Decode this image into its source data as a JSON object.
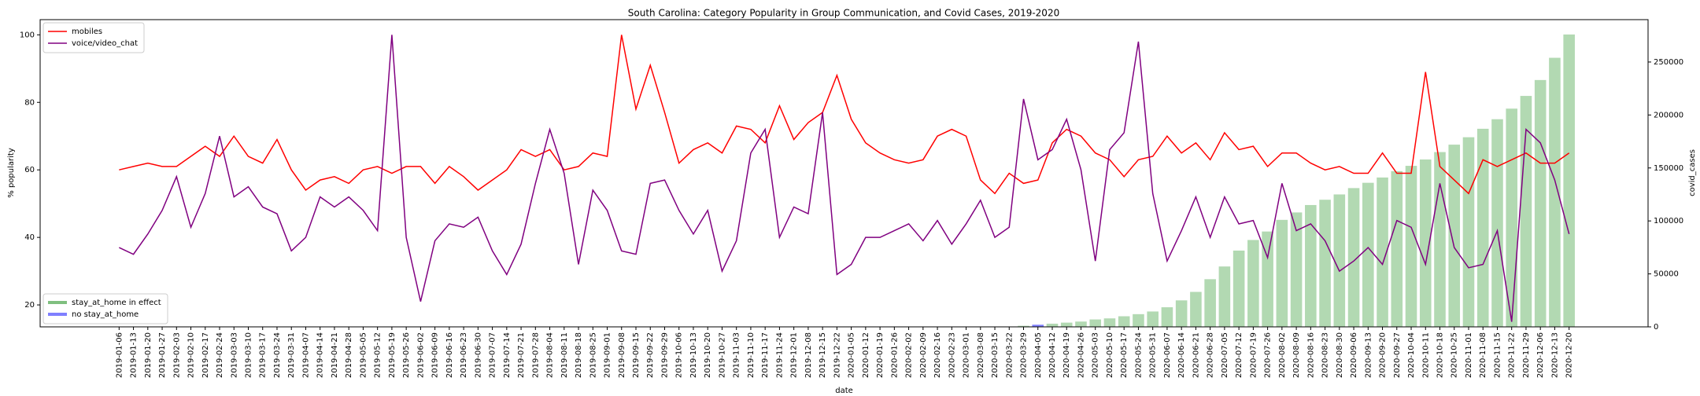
{
  "chart_data": {
    "type": "line",
    "title": "South Carolina: Category Popularity in Group Communication, and Covid Cases, 2019-2020",
    "xlabel": "date",
    "ylabel": "% popularity",
    "y2label": "covid_cases",
    "categories": [
      "2019-01-06",
      "2019-01-13",
      "2019-01-20",
      "2019-01-27",
      "2019-02-03",
      "2019-02-10",
      "2019-02-17",
      "2019-02-24",
      "2019-03-03",
      "2019-03-10",
      "2019-03-17",
      "2019-03-24",
      "2019-03-31",
      "2019-04-07",
      "2019-04-14",
      "2019-04-21",
      "2019-04-28",
      "2019-05-05",
      "2019-05-12",
      "2019-05-19",
      "2019-05-26",
      "2019-06-02",
      "2019-06-09",
      "2019-06-16",
      "2019-06-23",
      "2019-06-30",
      "2019-07-07",
      "2019-07-14",
      "2019-07-21",
      "2019-07-28",
      "2019-08-04",
      "2019-08-11",
      "2019-08-18",
      "2019-08-25",
      "2019-09-01",
      "2019-09-08",
      "2019-09-15",
      "2019-09-22",
      "2019-09-29",
      "2019-10-06",
      "2019-10-13",
      "2019-10-20",
      "2019-10-27",
      "2019-11-03",
      "2019-11-10",
      "2019-11-17",
      "2019-11-24",
      "2019-12-01",
      "2019-12-08",
      "2019-12-15",
      "2019-12-22",
      "2020-01-05",
      "2020-01-12",
      "2020-01-19",
      "2020-01-26",
      "2020-02-02",
      "2020-02-09",
      "2020-02-16",
      "2020-02-23",
      "2020-03-01",
      "2020-03-08",
      "2020-03-15",
      "2020-03-22",
      "2020-03-29",
      "2020-04-05",
      "2020-04-12",
      "2020-04-19",
      "2020-04-26",
      "2020-05-03",
      "2020-05-10",
      "2020-05-17",
      "2020-05-24",
      "2020-05-31",
      "2020-06-07",
      "2020-06-14",
      "2020-06-21",
      "2020-06-28",
      "2020-07-05",
      "2020-07-12",
      "2020-07-19",
      "2020-07-26",
      "2020-08-02",
      "2020-08-09",
      "2020-08-16",
      "2020-08-23",
      "2020-08-30",
      "2020-09-06",
      "2020-09-13",
      "2020-09-20",
      "2020-09-27",
      "2020-10-04",
      "2020-10-11",
      "2020-10-18",
      "2020-10-25",
      "2020-11-01",
      "2020-11-08",
      "2020-11-15",
      "2020-11-22",
      "2020-11-29",
      "2020-12-06",
      "2020-12-13",
      "2020-12-20"
    ],
    "series": [
      {
        "name": "mobiles",
        "kind": "line",
        "color": "#ff0000",
        "values": [
          60,
          61,
          62,
          61,
          61,
          64,
          67,
          64,
          70,
          64,
          62,
          69,
          60,
          54,
          57,
          58,
          56,
          60,
          61,
          59,
          61,
          61,
          56,
          61,
          58,
          54,
          57,
          60,
          66,
          64,
          66,
          60,
          61,
          65,
          64,
          100,
          78,
          91,
          77,
          62,
          66,
          68,
          65,
          73,
          72,
          68,
          79,
          69,
          74,
          77,
          88,
          75,
          68,
          65,
          63,
          62,
          63,
          70,
          72,
          70,
          57,
          53,
          59,
          56,
          57,
          68,
          72,
          70,
          65,
          63,
          58,
          63,
          64,
          70,
          65,
          68,
          63,
          71,
          66,
          67,
          61,
          65,
          65,
          62,
          60,
          61,
          59,
          59,
          65,
          59,
          59,
          89,
          61,
          57,
          53,
          63,
          61,
          63,
          65,
          62,
          62,
          65
        ]
      },
      {
        "name": "voice/video_chat",
        "kind": "line",
        "color": "#800080",
        "values": [
          37,
          35,
          41,
          48,
          58,
          43,
          53,
          70,
          52,
          55,
          49,
          47,
          36,
          40,
          52,
          49,
          52,
          48,
          42,
          100,
          40,
          21,
          39,
          44,
          43,
          46,
          36,
          29,
          38,
          56,
          72,
          59,
          32,
          54,
          48,
          36,
          35,
          56,
          57,
          48,
          41,
          48,
          30,
          39,
          65,
          72,
          40,
          49,
          47,
          77,
          29,
          32,
          40,
          40,
          42,
          44,
          39,
          45,
          38,
          44,
          51,
          40,
          43,
          81,
          63,
          66,
          75,
          60,
          33,
          66,
          71,
          98,
          53,
          33,
          42,
          52,
          40,
          52,
          44,
          45,
          34,
          56,
          42,
          44,
          39,
          30,
          33,
          37,
          32,
          45,
          43,
          32,
          56,
          37,
          31,
          32,
          42,
          15,
          72,
          68,
          57,
          41
        ]
      },
      {
        "name": "stay_at_home in effect",
        "kind": "bar",
        "axis": "y2",
        "color": "#008000",
        "alpha": 0.3,
        "values": [
          null,
          null,
          null,
          null,
          null,
          null,
          null,
          null,
          null,
          null,
          null,
          null,
          null,
          null,
          null,
          null,
          null,
          null,
          null,
          null,
          null,
          null,
          null,
          null,
          null,
          null,
          null,
          null,
          null,
          null,
          null,
          null,
          null,
          null,
          null,
          null,
          null,
          null,
          null,
          null,
          null,
          null,
          null,
          null,
          null,
          null,
          null,
          null,
          null,
          null,
          null,
          null,
          null,
          null,
          null,
          null,
          null,
          null,
          null,
          null,
          null,
          null,
          null,
          1000,
          null,
          3000,
          4000,
          5000,
          7000,
          8000,
          10000,
          12000,
          14500,
          18500,
          25000,
          33000,
          45000,
          57000,
          72000,
          82000,
          90000,
          101000,
          108000,
          115000,
          120000,
          125000,
          131000,
          136000,
          141000,
          147000,
          152000,
          158000,
          165000,
          172000,
          179000,
          187000,
          196000,
          206000,
          218000,
          233000,
          254000,
          276000
        ]
      },
      {
        "name": "no stay_at_home",
        "kind": "bar",
        "axis": "y2",
        "color": "#0000ff",
        "alpha": 0.5,
        "values": [
          null,
          null,
          null,
          null,
          null,
          null,
          null,
          null,
          null,
          null,
          null,
          null,
          null,
          null,
          null,
          null,
          null,
          null,
          null,
          null,
          null,
          null,
          null,
          null,
          null,
          null,
          null,
          null,
          null,
          null,
          null,
          null,
          null,
          null,
          null,
          null,
          null,
          null,
          null,
          null,
          null,
          null,
          null,
          null,
          null,
          null,
          null,
          null,
          null,
          null,
          null,
          null,
          null,
          null,
          null,
          null,
          null,
          null,
          null,
          null,
          null,
          null,
          null,
          null,
          2000,
          null,
          null,
          null,
          null,
          null,
          null,
          null,
          null,
          null,
          null,
          null,
          null,
          null,
          null,
          null,
          null,
          null,
          null,
          null,
          null,
          null,
          null,
          null,
          null,
          null,
          null,
          null,
          null,
          null,
          null,
          null,
          null,
          null,
          null,
          null,
          null,
          null
        ]
      }
    ],
    "ylim": [
      13.5,
      104.5
    ],
    "yticks": [
      20,
      40,
      60,
      80,
      100
    ],
    "y2lim": [
      0,
      290000
    ],
    "y2ticks": [
      0,
      50000,
      100000,
      150000,
      200000,
      250000
    ],
    "legend": "upper left",
    "bar_legend": "lower left",
    "grid": false
  }
}
